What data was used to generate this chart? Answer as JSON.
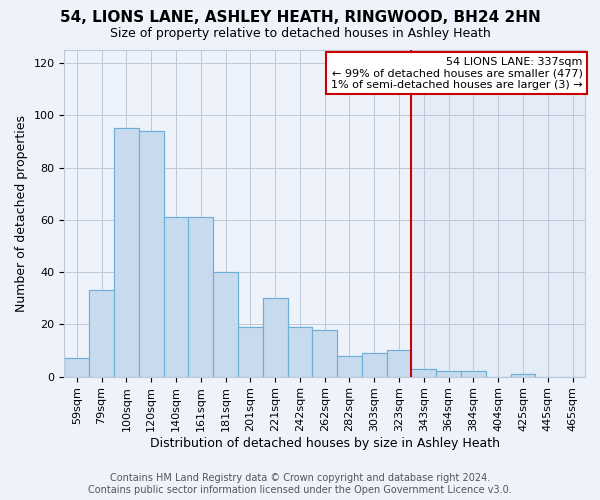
{
  "title": "54, LIONS LANE, ASHLEY HEATH, RINGWOOD, BH24 2HN",
  "subtitle": "Size of property relative to detached houses in Ashley Heath",
  "xlabel": "Distribution of detached houses by size in Ashley Heath",
  "ylabel": "Number of detached properties",
  "categories": [
    "59sqm",
    "79sqm",
    "100sqm",
    "120sqm",
    "140sqm",
    "161sqm",
    "181sqm",
    "201sqm",
    "221sqm",
    "242sqm",
    "262sqm",
    "282sqm",
    "303sqm",
    "323sqm",
    "343sqm",
    "364sqm",
    "384sqm",
    "404sqm",
    "425sqm",
    "445sqm",
    "465sqm"
  ],
  "values": [
    7,
    33,
    95,
    94,
    61,
    61,
    40,
    19,
    30,
    19,
    18,
    8,
    9,
    10,
    3,
    2,
    2,
    0,
    1,
    0,
    0
  ],
  "bar_color": "#c8daee",
  "bar_edge_color": "#6baed6",
  "highlight_bg_color": "#dce8f5",
  "vline_color": "#cc0000",
  "vline_x_index": 14,
  "annotation_title": "54 LIONS LANE: 337sqm",
  "annotation_line1": "← 99% of detached houses are smaller (477)",
  "annotation_line2": "1% of semi-detached houses are larger (3) →",
  "annotation_box_color": "#cc0000",
  "ylim": [
    0,
    125
  ],
  "yticks": [
    0,
    20,
    40,
    60,
    80,
    100,
    120
  ],
  "footer": "Contains HM Land Registry data © Crown copyright and database right 2024.\nContains public sector information licensed under the Open Government Licence v3.0.",
  "background_color": "#eef2fa",
  "plot_bg_color": "#eef2fa",
  "grid_color": "#c0c8d8",
  "title_fontsize": 11,
  "subtitle_fontsize": 9,
  "xlabel_fontsize": 9,
  "ylabel_fontsize": 9,
  "tick_fontsize": 8,
  "annotation_fontsize": 8,
  "footer_fontsize": 7
}
